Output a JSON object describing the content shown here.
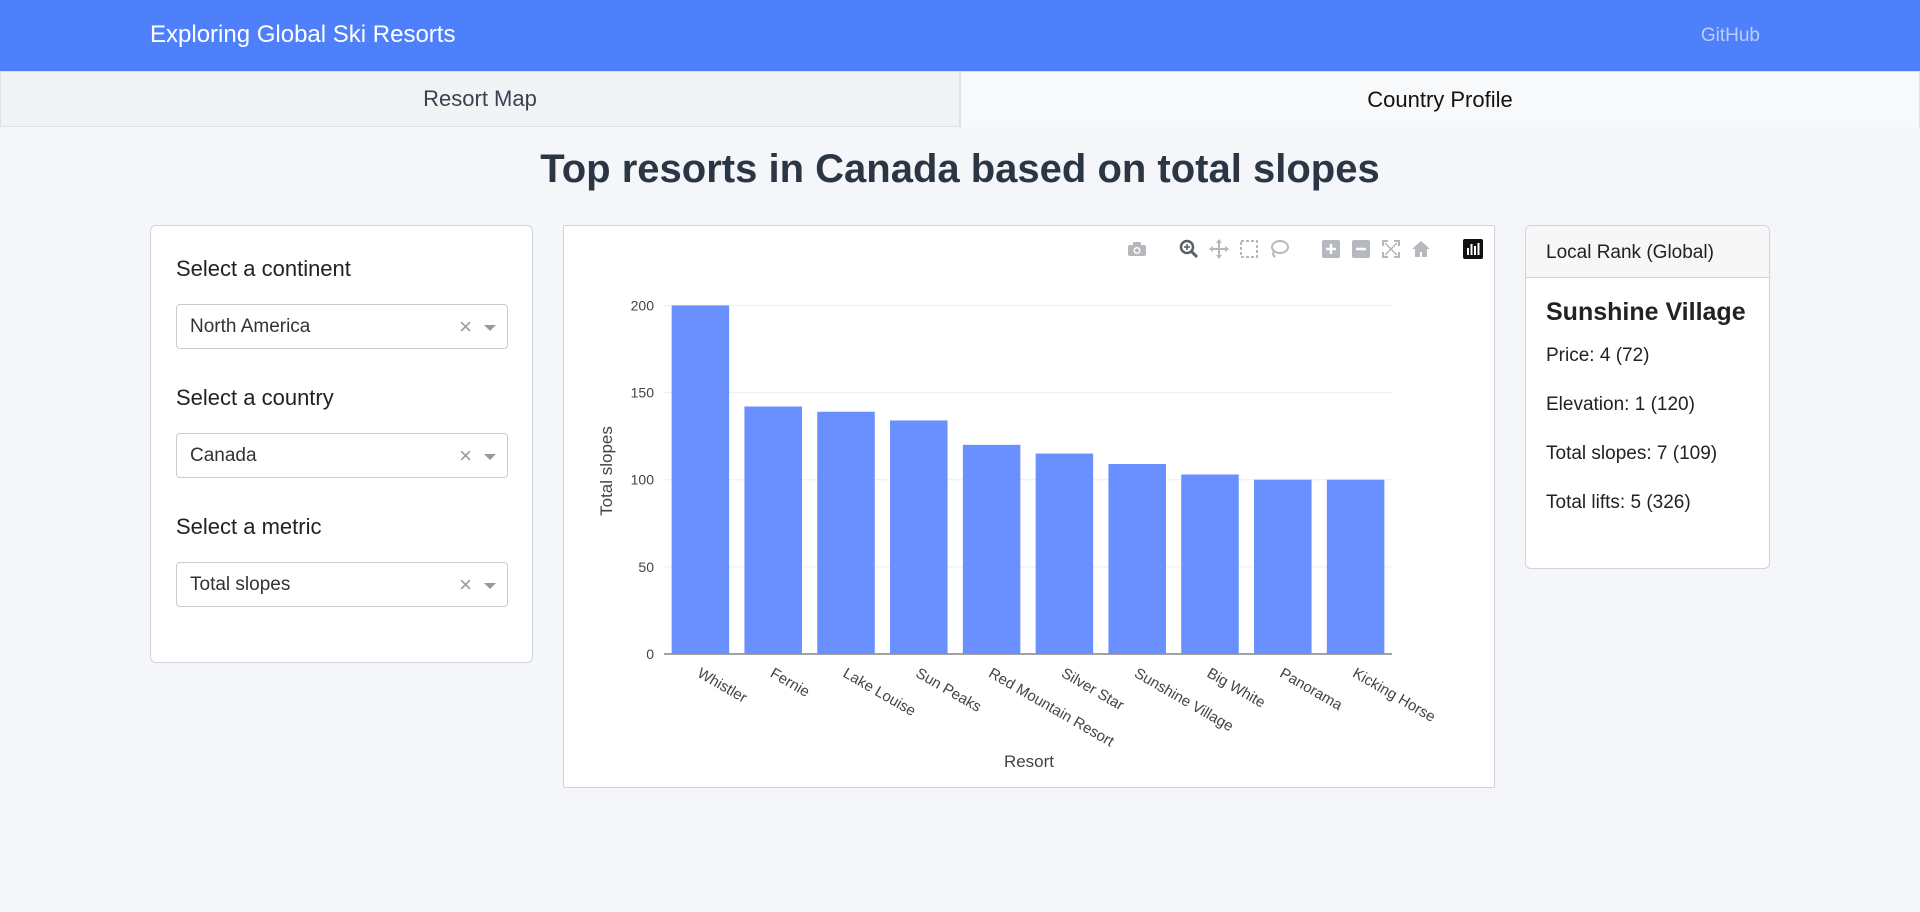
{
  "navbar": {
    "brand": "Exploring Global Ski Resorts",
    "github": "GitHub",
    "color": "#4f80fc"
  },
  "tabs": [
    {
      "label": "Resort Map",
      "active": false
    },
    {
      "label": "Country Profile",
      "active": true
    }
  ],
  "page_title": "Top resorts in Canada based on total slopes",
  "controls": {
    "continent": {
      "label": "Select a continent",
      "value": "North America",
      "clear": "×"
    },
    "country": {
      "label": "Select a country",
      "value": "Canada",
      "clear": "×"
    },
    "metric": {
      "label": "Select a metric",
      "value": "Total slopes",
      "clear": "×"
    }
  },
  "modebar_icons": [
    "camera-icon",
    "zoom-icon",
    "pan-icon",
    "box-select-icon",
    "lasso-select-icon",
    "zoom-in-icon",
    "zoom-out-icon",
    "autoscale-icon",
    "reset-axes-icon",
    "plotly-logo-icon"
  ],
  "chart_data": {
    "type": "bar",
    "categories": [
      "Whistler",
      "Fernie",
      "Lake Louise",
      "Sun Peaks",
      "Red Mountain Resort",
      "Silver Star",
      "Sunshine Village",
      "Big White",
      "Panorama",
      "Kicking Horse"
    ],
    "values": [
      200,
      142,
      139,
      134,
      120,
      115,
      109,
      103,
      100,
      100
    ],
    "xlabel": "Resort",
    "ylabel": "Total slopes",
    "yticks": [
      0,
      50,
      100,
      150,
      200
    ],
    "ylim": [
      0,
      210
    ],
    "bar_color": "#6a8fff",
    "grid": true
  },
  "rank": {
    "header": "Local Rank (Global)",
    "resort": "Sunshine Village",
    "price": "Price: 4 (72)",
    "elevation": "Elevation: 1 (120)",
    "slopes": "Total slopes: 7 (109)",
    "lifts": "Total lifts: 5 (326)"
  }
}
